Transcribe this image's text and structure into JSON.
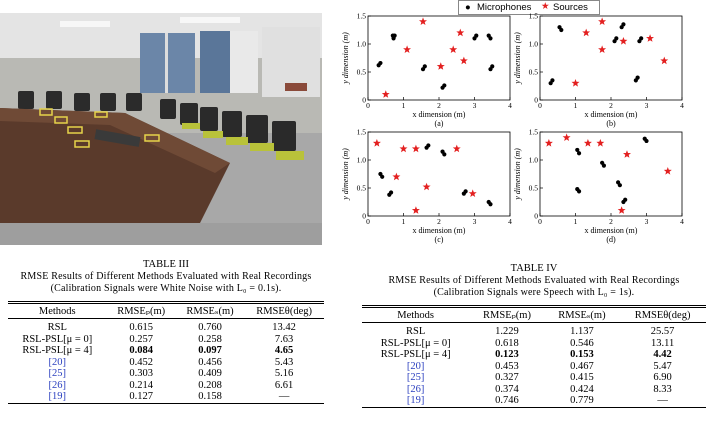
{
  "legend": {
    "microphones": "Microphones",
    "sources": "Sources"
  },
  "plot_axes": {
    "x_label": "x dimension (m)",
    "y_label": "y dimension (m)",
    "x_ticks": [
      "0",
      "1",
      "2",
      "3",
      "4"
    ],
    "y_ticks": [
      "0",
      "0.5",
      "1.0",
      "1.5"
    ]
  },
  "panels": [
    "(a)",
    "(b)",
    "(c)",
    "(d)"
  ],
  "chart_data": [
    {
      "type": "scatter",
      "panel": "(a)",
      "xlim": [
        0,
        4
      ],
      "ylim": [
        0,
        1.5
      ],
      "series": [
        {
          "name": "Microphones",
          "marker": "dot",
          "points": [
            [
              0.3,
              0.62
            ],
            [
              0.35,
              0.66
            ],
            [
              0.7,
              1.15
            ],
            [
              0.75,
              1.15
            ],
            [
              0.72,
              1.1
            ],
            [
              1.55,
              0.55
            ],
            [
              1.6,
              0.6
            ],
            [
              2.1,
              0.22
            ],
            [
              2.15,
              0.26
            ],
            [
              3.0,
              1.1
            ],
            [
              3.05,
              1.15
            ],
            [
              3.4,
              1.15
            ],
            [
              3.45,
              1.1
            ],
            [
              3.45,
              0.55
            ],
            [
              3.5,
              0.6
            ]
          ]
        },
        {
          "name": "Sources",
          "marker": "star",
          "points": [
            [
              0.5,
              0.1
            ],
            [
              1.1,
              0.9
            ],
            [
              1.55,
              1.4
            ],
            [
              2.05,
              0.6
            ],
            [
              2.4,
              0.9
            ],
            [
              2.6,
              1.2
            ],
            [
              2.7,
              0.7
            ]
          ]
        }
      ]
    },
    {
      "type": "scatter",
      "panel": "(b)",
      "xlim": [
        0,
        4
      ],
      "ylim": [
        0,
        1.5
      ],
      "series": [
        {
          "name": "Microphones",
          "marker": "dot",
          "points": [
            [
              0.3,
              0.3
            ],
            [
              0.35,
              0.35
            ],
            [
              0.55,
              1.3
            ],
            [
              0.6,
              1.25
            ],
            [
              2.1,
              1.05
            ],
            [
              2.15,
              1.1
            ],
            [
              2.3,
              1.3
            ],
            [
              2.35,
              1.35
            ],
            [
              2.7,
              0.35
            ],
            [
              2.75,
              0.4
            ],
            [
              2.8,
              1.05
            ],
            [
              2.85,
              1.1
            ]
          ]
        },
        {
          "name": "Sources",
          "marker": "star",
          "points": [
            [
              1.0,
              0.3
            ],
            [
              1.3,
              1.2
            ],
            [
              1.75,
              1.4
            ],
            [
              1.75,
              0.9
            ],
            [
              2.35,
              1.05
            ],
            [
              3.1,
              1.1
            ],
            [
              3.5,
              0.7
            ]
          ]
        }
      ]
    },
    {
      "type": "scatter",
      "panel": "(c)",
      "xlim": [
        0,
        4
      ],
      "ylim": [
        0,
        1.5
      ],
      "series": [
        {
          "name": "Microphones",
          "marker": "dot",
          "points": [
            [
              0.35,
              0.75
            ],
            [
              0.4,
              0.7
            ],
            [
              0.6,
              0.38
            ],
            [
              0.65,
              0.42
            ],
            [
              1.65,
              1.22
            ],
            [
              1.7,
              1.26
            ],
            [
              2.1,
              1.15
            ],
            [
              2.15,
              1.1
            ],
            [
              2.7,
              0.4
            ],
            [
              2.75,
              0.44
            ],
            [
              3.4,
              0.25
            ],
            [
              3.45,
              0.21
            ]
          ]
        },
        {
          "name": "Sources",
          "marker": "star",
          "points": [
            [
              0.25,
              1.3
            ],
            [
              0.8,
              0.7
            ],
            [
              1.0,
              1.2
            ],
            [
              1.35,
              1.2
            ],
            [
              1.35,
              0.1
            ],
            [
              1.65,
              0.52
            ],
            [
              2.5,
              1.2
            ],
            [
              2.95,
              0.4
            ]
          ]
        }
      ]
    },
    {
      "type": "scatter",
      "panel": "(d)",
      "xlim": [
        0,
        4
      ],
      "ylim": [
        0,
        1.5
      ],
      "series": [
        {
          "name": "Microphones",
          "marker": "dot",
          "points": [
            [
              1.05,
              1.18
            ],
            [
              1.1,
              1.12
            ],
            [
              1.05,
              0.48
            ],
            [
              1.1,
              0.44
            ],
            [
              1.75,
              0.95
            ],
            [
              1.8,
              0.9
            ],
            [
              2.2,
              0.6
            ],
            [
              2.25,
              0.55
            ],
            [
              2.35,
              0.25
            ],
            [
              2.4,
              0.29
            ],
            [
              2.95,
              1.38
            ],
            [
              3.0,
              1.34
            ]
          ]
        },
        {
          "name": "Sources",
          "marker": "star",
          "points": [
            [
              0.25,
              1.3
            ],
            [
              0.75,
              1.4
            ],
            [
              1.35,
              1.3
            ],
            [
              1.7,
              1.3
            ],
            [
              2.3,
              0.1
            ],
            [
              2.45,
              1.1
            ],
            [
              3.6,
              0.8
            ]
          ]
        }
      ]
    }
  ],
  "table3": {
    "title": "TABLE III",
    "caption": "RMSE Results of Different Methods Evaluated with Real Recordings (Calibration Signals were White Noise with L₀ = 0.1s).",
    "headers": [
      "Methods",
      "RMSEₚ(m)",
      "RMSEₛ(m)",
      "RMSEθ(deg)"
    ],
    "rows": [
      [
        "RSL",
        "0.615",
        "0.760",
        "13.42"
      ],
      [
        "RSL-PSL[μ = 0]",
        "0.257",
        "0.258",
        "7.63"
      ],
      [
        "RSL-PSL[μ = 4]",
        "0.084",
        "0.097",
        "4.65"
      ],
      [
        "[20]",
        "0.452",
        "0.456",
        "5.43"
      ],
      [
        "[25]",
        "0.303",
        "0.409",
        "5.16"
      ],
      [
        "[26]",
        "0.214",
        "0.208",
        "6.61"
      ],
      [
        "[19]",
        "0.127",
        "0.158",
        "—"
      ]
    ]
  },
  "table4": {
    "title": "TABLE IV",
    "caption": "RMSE Results of Different Methods Evaluated with Real Recordings (Calibration Signals were Speech with L₀ = 1s).",
    "headers": [
      "Methods",
      "RMSEₚ(m)",
      "RMSEₛ(m)",
      "RMSEθ(deg)"
    ],
    "rows": [
      [
        "RSL",
        "1.229",
        "1.137",
        "25.57"
      ],
      [
        "RSL-PSL[μ = 0]",
        "0.618",
        "0.546",
        "13.11"
      ],
      [
        "RSL-PSL[μ = 4]",
        "0.123",
        "0.153",
        "4.42"
      ],
      [
        "[20]",
        "0.453",
        "0.467",
        "5.47"
      ],
      [
        "[25]",
        "0.327",
        "0.415",
        "6.90"
      ],
      [
        "[26]",
        "0.374",
        "0.424",
        "8.33"
      ],
      [
        "[19]",
        "0.746",
        "0.779",
        "—"
      ]
    ]
  },
  "colors": {
    "mic": "#000000",
    "source": "#e32020",
    "cite": "#2a3fbf"
  }
}
